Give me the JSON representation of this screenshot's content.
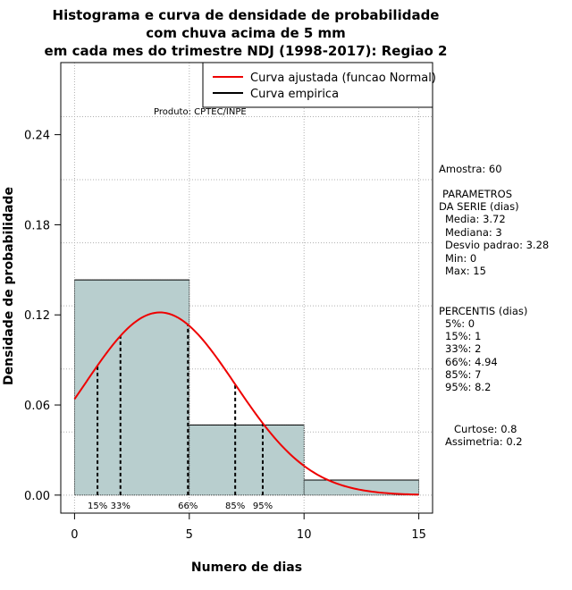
{
  "chart_data": {
    "type": "histogram",
    "title_lines": [
      "Histograma e curva de densidade de probabilidade",
      "com chuva acima de 5 mm",
      "em cada mes do trimestre NDJ (1998-2017): Regiao 2"
    ],
    "xlabel": "Numero de dias",
    "ylabel": "Densidade de probabilidade",
    "xlim": [
      -0.6,
      15.6
    ],
    "ylim": [
      -0.012,
      0.288
    ],
    "x_ticks": [
      0,
      5,
      10,
      15
    ],
    "y_ticks": [
      0.0,
      0.06,
      0.12,
      0.18,
      0.24
    ],
    "y_tick_labels": [
      "0.00",
      "0.06",
      "0.12",
      "0.18",
      "0.24"
    ],
    "bins": [
      {
        "start": 0,
        "end": 5,
        "density": 0.1433
      },
      {
        "start": 5,
        "end": 10,
        "density": 0.0467
      },
      {
        "start": 10,
        "end": 15,
        "density": 0.01
      }
    ],
    "bar_color": "#b8cece",
    "normal_fit": {
      "mean": 3.72,
      "sd": 3.28,
      "x_from": 0,
      "x_to": 15,
      "color": "#ee0000"
    },
    "percentile_lines": [
      {
        "label": "15%",
        "x": 1
      },
      {
        "label": "33%",
        "x": 2
      },
      {
        "label": "66%",
        "x": 4.94
      },
      {
        "label": "85%",
        "x": 7
      },
      {
        "label": "95%",
        "x": 8.2
      }
    ],
    "legend": [
      {
        "label": "Curva ajustada (funcao Normal)",
        "color": "#ee0000"
      },
      {
        "label": "Curva empirica",
        "color": "#000000"
      }
    ],
    "product_label": "Produto: CPTEC/INPE"
  },
  "side_panel": {
    "sample": "Amostra: 60",
    "params_title_1": "PARAMETROS",
    "params_title_2": "DA SERIE (dias)",
    "params": [
      "Media: 3.72",
      "Mediana: 3",
      "Desvio padrao: 3.28",
      "Min: 0",
      "Max: 15"
    ],
    "percentis_title": "PERCENTIS (dias)",
    "percentis": [
      "5%: 0",
      "15%: 1",
      "33%: 2",
      "66%: 4.94",
      "85%: 7",
      "95%: 8.2"
    ],
    "curtose": "Curtose: 0.8",
    "assimetria": "Assimetria: 0.2"
  }
}
